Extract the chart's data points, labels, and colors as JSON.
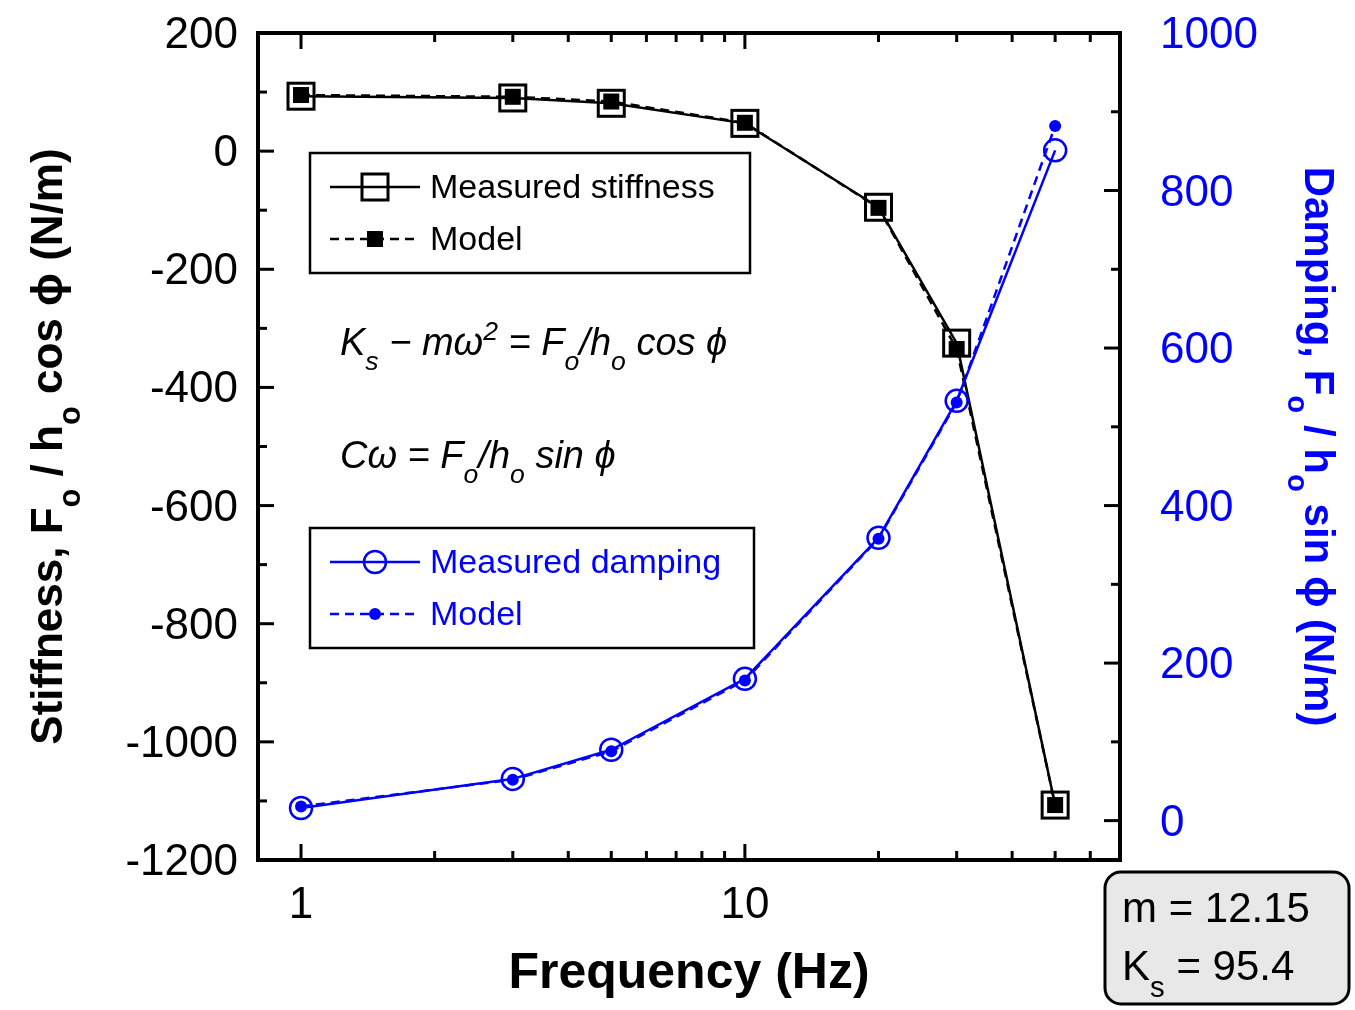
{
  "chart_data": {
    "type": "line",
    "xlabel": "Frequency (Hz)",
    "ylabel": "Stiffness, F$_{o}$ / h$_{o}$ cos ϕ (N/m)",
    "y2label": "Damping, F$_{o}$ / h$_{o}$ sin ϕ (N/m)",
    "log": "x",
    "x": [
      1,
      3,
      5,
      10,
      20,
      30,
      50
    ],
    "xlim": [
      0.8,
      70
    ],
    "xticks": [
      1,
      {
        "value": 2,
        "label": null
      },
      {
        "value": 3,
        "label": null
      },
      {
        "value": 4,
        "label": null
      },
      {
        "value": 5,
        "label": null
      },
      {
        "value": 6,
        "label": null
      },
      {
        "value": 7,
        "label": null
      },
      {
        "value": 8,
        "label": null
      },
      {
        "value": 9,
        "label": null
      },
      10,
      {
        "value": 20,
        "label": null
      },
      {
        "value": 30,
        "label": null
      },
      {
        "value": 40,
        "label": null
      },
      {
        "value": 50,
        "label": null
      },
      {
        "value": 60,
        "label": null
      }
    ],
    "ylim": [
      -1200,
      200
    ],
    "yticks": [
      -1200,
      {
        "value": -1100,
        "label": null
      },
      -1000,
      {
        "value": -900,
        "label": null
      },
      -800,
      {
        "value": -700,
        "label": null
      },
      -600,
      {
        "value": -500,
        "label": null
      },
      -400,
      {
        "value": -300,
        "label": null
      },
      -200,
      {
        "value": -100,
        "label": null
      },
      0,
      {
        "value": 100,
        "label": null
      },
      200
    ],
    "y2lim": [
      -50,
      1000
    ],
    "y2ticks": [
      0,
      {
        "value": 100,
        "label": null
      },
      200,
      {
        "value": 300,
        "label": null
      },
      400,
      {
        "value": 500,
        "label": null
      },
      600,
      {
        "value": 700,
        "label": null
      },
      800,
      {
        "value": 900,
        "label": null
      },
      1000
    ],
    "legend": "left",
    "grid": false,
    "series": [
      {
        "name": "Measured stiffness",
        "color": "#000000",
        "marker": "square",
        "line_style": "solid",
        "values": [
          93,
          90,
          81,
          47,
          -95,
          -325,
          -1107
        ]
      },
      {
        "name": "Model",
        "color": "#000000",
        "marker": "square",
        "line_style": "dashed",
        "values": [
          95,
          92,
          84,
          48,
          -96,
          -335,
          -1107
        ]
      },
      {
        "name": "Measured damping",
        "color": "#0000ff",
        "marker": "circle",
        "line_style": "solid",
        "axis": "y2",
        "values": [
          16,
          53,
          90,
          180,
          359,
          533,
          851
        ]
      },
      {
        "name": "Model",
        "color": "#0000ff",
        "marker": "circle",
        "line_style": "dashed",
        "axis": "y2",
        "values": [
          18,
          52,
          88,
          178,
          358,
          531,
          882
        ]
      }
    ],
    "annotations": [
      "K$_{s}$ − mω$^{2}$ = F$_{o}$/h$_{o}$ cos ϕ",
      "Cω = F$_{o}$/h$_{o}$ sin ϕ",
      "m = 12.15",
      "K$_{s}$ = 95.4"
    ]
  }
}
